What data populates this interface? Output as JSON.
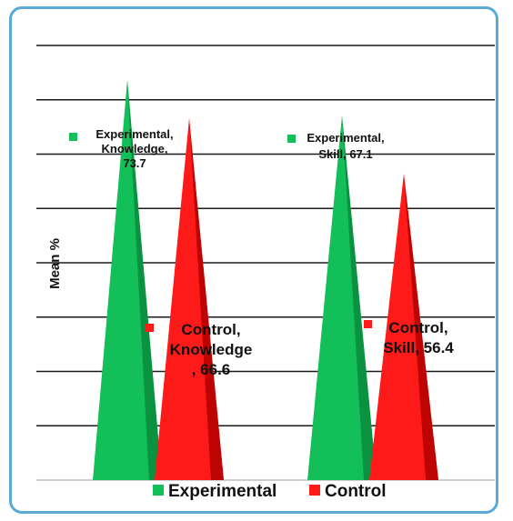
{
  "chart_data": {
    "type": "bar",
    "bar_shape": "cone",
    "title": "",
    "xlabel": "",
    "ylabel": "Mean %",
    "categories": [
      "Knowledge",
      "Skill"
    ],
    "series": [
      {
        "name": "Experimental",
        "color": "#12bf58",
        "values": [
          73.7,
          67.1
        ]
      },
      {
        "name": "Control",
        "color": "#ff1a1a",
        "values": [
          66.6,
          56.4
        ]
      }
    ],
    "data_labels": [
      {
        "series": 0,
        "category": 0,
        "lines": [
          "Experimental,",
          "Knowledge,",
          "73.7"
        ]
      },
      {
        "series": 0,
        "category": 1,
        "lines": [
          "Experimental,",
          "Skill, 67.1"
        ]
      },
      {
        "series": 1,
        "category": 0,
        "lines": [
          "Control,",
          "Knowledge",
          ", 66.6"
        ]
      },
      {
        "series": 1,
        "category": 1,
        "lines": [
          "Control,",
          "Skill, 56.4"
        ]
      }
    ],
    "ylim": [
      0,
      80
    ],
    "grid": true,
    "legend_position": "bottom"
  }
}
